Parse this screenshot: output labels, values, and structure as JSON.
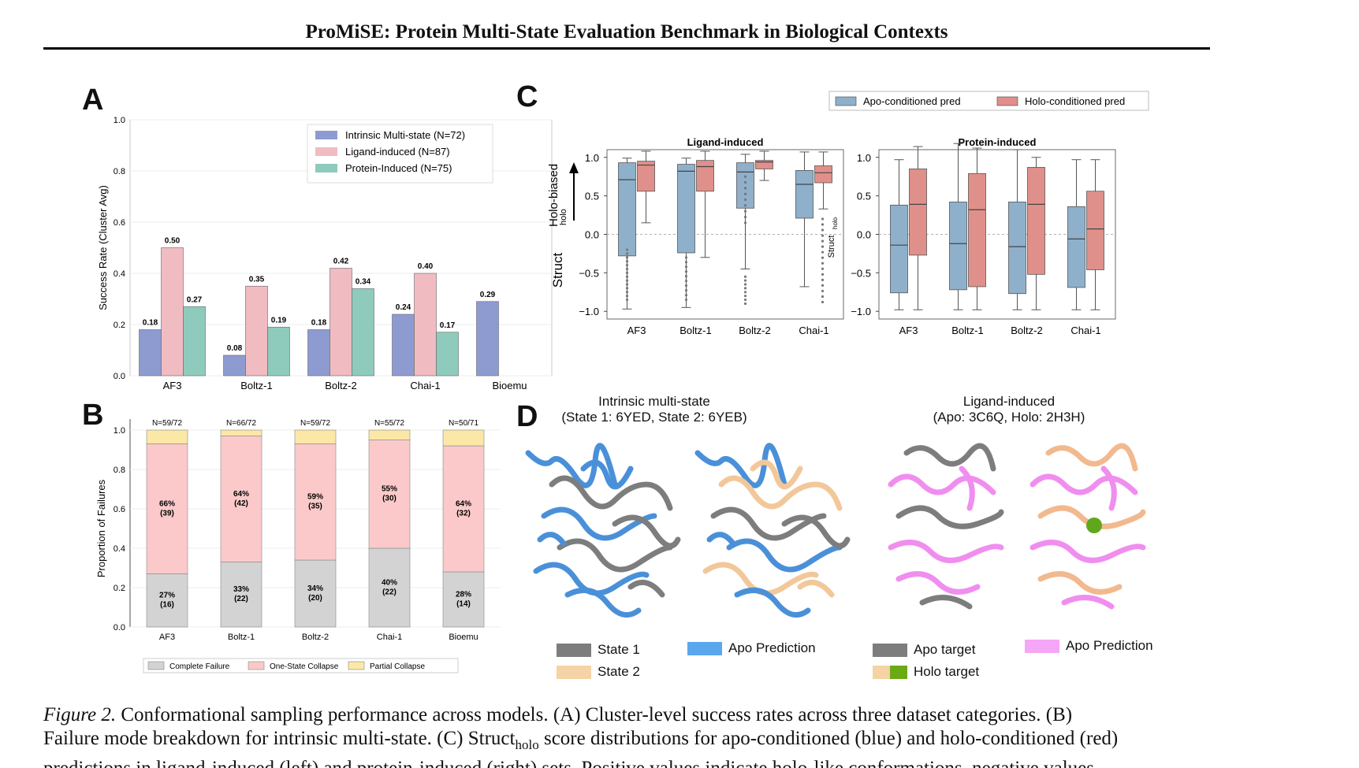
{
  "header": {
    "title": "ProMiSE: Protein Multi-State Evaluation Benchmark in Biological Contexts"
  },
  "panels": {
    "a": "A",
    "b": "B",
    "c": "C",
    "d": "D"
  },
  "colors": {
    "intrinsic": "#8e9bd1",
    "ligand": "#f0bcc2",
    "protein": "#8fcbbd",
    "apo_box": "#8fb0ca",
    "holo_box": "#e0908a",
    "fail_complete": "#d3d3d3",
    "fail_one": "#fbc9c9",
    "fail_partial": "#fbe8a6"
  },
  "chart_data": [
    {
      "type": "bar",
      "id": "A",
      "ylabel": "Success Rate (Cluster Avg)",
      "ylim": [
        0,
        1.0
      ],
      "yticks": [
        "0.0",
        "0.2",
        "0.4",
        "0.6",
        "0.8",
        "1.0"
      ],
      "categories": [
        "AF3",
        "Boltz-1",
        "Boltz-2",
        "Chai-1",
        "Bioemu"
      ],
      "legend": [
        {
          "label": "Intrinsic Multi-state (N=72)",
          "color": "#8e9bd1"
        },
        {
          "label": "Ligand-induced       (N=87)",
          "color": "#f0bcc2"
        },
        {
          "label": "Protein-Induced     (N=75)",
          "color": "#8fcbbd"
        }
      ],
      "series": [
        {
          "name": "Intrinsic Multi-state",
          "values": [
            0.18,
            0.08,
            0.18,
            0.24,
            0.29
          ],
          "labels": [
            "0.18",
            "0.08",
            "0.18",
            "0.24",
            "0.29"
          ]
        },
        {
          "name": "Ligand-induced",
          "values": [
            0.5,
            0.35,
            0.42,
            0.4,
            null
          ],
          "labels": [
            "0.50",
            "0.35",
            "0.42",
            "0.40",
            ""
          ]
        },
        {
          "name": "Protein-Induced",
          "values": [
            0.27,
            0.19,
            0.34,
            0.17,
            null
          ],
          "labels": [
            "0.27",
            "0.19",
            "0.34",
            "0.17",
            ""
          ]
        }
      ]
    },
    {
      "type": "bar",
      "id": "B",
      "stacked": true,
      "ylabel": "Proportion of Failures",
      "ylim": [
        0,
        1.0
      ],
      "yticks": [
        "0.0",
        "0.2",
        "0.4",
        "0.6",
        "0.8",
        "1.0"
      ],
      "categories": [
        "AF3",
        "Boltz-1",
        "Boltz-2",
        "Chai-1",
        "Bioemu"
      ],
      "top_labels": [
        "N=59/72",
        "N=66/72",
        "N=59/72",
        "N=55/72",
        "N=50/71"
      ],
      "series": [
        {
          "name": "Complete Failure",
          "values": [
            0.27,
            0.33,
            0.34,
            0.4,
            0.28
          ],
          "labels": [
            "27%\n(16)",
            "33%\n(22)",
            "34%\n(20)",
            "40%\n(22)",
            "28%\n(14)"
          ]
        },
        {
          "name": "One-State Collapse",
          "values": [
            0.66,
            0.64,
            0.59,
            0.55,
            0.64
          ],
          "labels": [
            "66%\n(39)",
            "64%\n(42)",
            "59%\n(35)",
            "55%\n(30)",
            "64%\n(32)"
          ]
        },
        {
          "name": "Partial Collapse",
          "values": [
            0.07,
            0.03,
            0.07,
            0.05,
            0.08
          ],
          "labels": [
            "",
            "",
            "",
            "",
            ""
          ]
        }
      ]
    },
    {
      "type": "box",
      "id": "C-left",
      "title": "Ligand-induced",
      "ylabel_arrow": "Holo-biased",
      "ylabel": "Struct",
      "ylabel_sub": "holo",
      "ylim": [
        -1.1,
        1.1
      ],
      "yticks": [
        "1.0",
        "0.5",
        "0.0",
        "−0.5",
        "−1.0"
      ],
      "categories": [
        "AF3",
        "Boltz-1",
        "Boltz-2",
        "Chai-1"
      ],
      "legend": [
        "Apo-conditioned pred",
        "Holo-conditioned pred"
      ],
      "boxes": [
        {
          "apo": {
            "min": -0.97,
            "q1": -0.28,
            "med": 0.71,
            "q3": 0.93,
            "max": 0.99
          },
          "holo": {
            "min": 0.15,
            "q1": 0.56,
            "med": 0.9,
            "q3": 0.95,
            "max": 1.08
          }
        },
        {
          "apo": {
            "min": -0.95,
            "q1": -0.24,
            "med": 0.82,
            "q3": 0.91,
            "max": 0.99
          },
          "holo": {
            "min": -0.3,
            "q1": 0.56,
            "med": 0.88,
            "q3": 0.96,
            "max": 1.08
          }
        },
        {
          "apo": {
            "min": -0.45,
            "q1": 0.34,
            "med": 0.81,
            "q3": 0.93,
            "max": 1.04
          },
          "holo": {
            "min": 0.7,
            "q1": 0.85,
            "med": 0.94,
            "q3": 0.96,
            "max": 1.08
          }
        },
        {
          "apo": {
            "min": -0.68,
            "q1": 0.21,
            "med": 0.65,
            "q3": 0.83,
            "max": 1.07
          },
          "holo": {
            "min": 0.33,
            "q1": 0.67,
            "med": 0.8,
            "q3": 0.89,
            "max": 1.07
          }
        }
      ]
    },
    {
      "type": "box",
      "id": "C-right",
      "title": "Protein-induced",
      "ylabel": "Struct",
      "ylabel_sub": "holo",
      "ylim": [
        -1.1,
        1.1
      ],
      "yticks": [
        "1.0",
        "0.5",
        "0.0",
        "−0.5",
        "−1.0"
      ],
      "categories": [
        "AF3",
        "Boltz-1",
        "Boltz-2",
        "Chai-1"
      ],
      "boxes": [
        {
          "apo": {
            "min": -0.98,
            "q1": -0.76,
            "med": -0.14,
            "q3": 0.38,
            "max": 0.97
          },
          "holo": {
            "min": -0.98,
            "q1": -0.27,
            "med": 0.39,
            "q3": 0.85,
            "max": 1.14
          }
        },
        {
          "apo": {
            "min": -0.98,
            "q1": -0.72,
            "med": -0.12,
            "q3": 0.42,
            "max": 1.18
          },
          "holo": {
            "min": -0.98,
            "q1": -0.68,
            "med": 0.32,
            "q3": 0.79,
            "max": 1.12
          }
        },
        {
          "apo": {
            "min": -0.98,
            "q1": -0.77,
            "med": -0.16,
            "q3": 0.42,
            "max": 1.1
          },
          "holo": {
            "min": -0.98,
            "q1": -0.52,
            "med": 0.39,
            "q3": 0.87,
            "max": 1.0
          }
        },
        {
          "apo": {
            "min": -0.98,
            "q1": -0.69,
            "med": -0.06,
            "q3": 0.36,
            "max": 0.97
          },
          "holo": {
            "min": -0.98,
            "q1": -0.46,
            "med": 0.07,
            "q3": 0.56,
            "max": 0.97
          }
        }
      ]
    }
  ],
  "panel_d": {
    "group1_title": "Intrinsic multi-state",
    "group1_sub": "(State 1: 6YED, State 2: 6YEB)",
    "group2_title": "Ligand-induced",
    "group2_sub": "(Apo: 3C6Q, Holo: 2H3H)",
    "legend": {
      "state1": "State 1",
      "state2": "State 2",
      "apo_pred_1": "Apo Prediction",
      "apo_target": "Apo target",
      "holo_target": "Holo target",
      "apo_pred_2": "Apo Prediction"
    }
  },
  "caption": {
    "fig": "Figure 2.",
    "line1": "Conformational sampling performance across models.  (A) Cluster-level success rates across three dataset categories.  (B)",
    "line2a": "Failure mode breakdown for intrinsic multi-state. (C) Struct",
    "line2sub": "holo",
    "line2b": " score distributions for apo-conditioned (blue) and holo-conditioned (red)",
    "line3": "predictions in ligand-induced (left) and protein-induced (right) sets. Positive values indicate holo-like conformations, negative values"
  }
}
